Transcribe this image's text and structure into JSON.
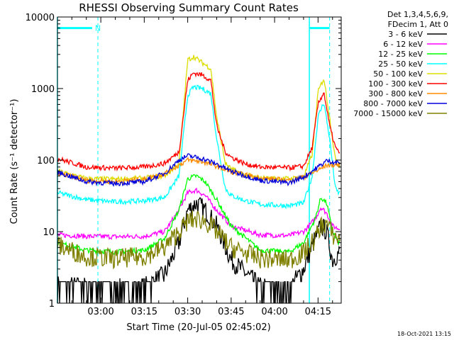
{
  "chart_data": {
    "type": "line",
    "title": "RHESSI Observing Summary Count Rates",
    "xlabel": "Start Time (20-Jul-05 02:45:02)",
    "ylabel": "Count Rate (s⁻¹ detector⁻¹)",
    "y_scale": "log",
    "ylim": [
      1,
      10000
    ],
    "xlim": [
      "02:45:02",
      "04:23:00"
    ],
    "x_ticks": [
      "03:00",
      "03:15",
      "03:30",
      "03:45",
      "04:00",
      "04:15"
    ],
    "y_ticks": [
      "1",
      "10",
      "100",
      "1000",
      "10000"
    ],
    "legend_header": [
      "Det 1,3,4,5,6,9,",
      "FDecim 1, Att 0"
    ],
    "legend_position": "right",
    "series": [
      {
        "name": "3 - 6 keV",
        "color": "#000000",
        "x": [
          "02:45",
          "02:55",
          "03:05",
          "03:15",
          "03:22",
          "03:27",
          "03:30",
          "03:33",
          "03:36",
          "03:40",
          "03:45",
          "03:55",
          "04:05",
          "04:10",
          "04:14",
          "04:16",
          "04:18",
          "04:20",
          "04:22"
        ],
        "values": [
          1.8,
          1.7,
          1.6,
          1.7,
          2.5,
          7,
          20,
          25,
          20,
          12,
          4,
          1.7,
          1.6,
          3,
          8,
          12,
          10,
          4,
          5
        ],
        "noisy": true
      },
      {
        "name": "6 - 12 keV",
        "color": "#ff00ff",
        "x": [
          "02:45",
          "02:55",
          "03:05",
          "03:15",
          "03:22",
          "03:27",
          "03:30",
          "03:33",
          "03:36",
          "03:40",
          "03:45",
          "03:55",
          "04:05",
          "04:10",
          "04:14",
          "04:16",
          "04:18",
          "04:20",
          "04:22"
        ],
        "values": [
          9,
          8.6,
          8.5,
          8.6,
          10,
          20,
          35,
          38,
          32,
          20,
          12,
          9,
          8.8,
          10,
          15,
          22,
          18,
          12,
          11
        ]
      },
      {
        "name": "12 - 25 keV",
        "color": "#00ff00",
        "x": [
          "02:45",
          "02:55",
          "03:05",
          "03:15",
          "03:22",
          "03:27",
          "03:30",
          "03:33",
          "03:36",
          "03:40",
          "03:45",
          "03:55",
          "04:05",
          "04:10",
          "04:14",
          "04:16",
          "04:18",
          "04:20",
          "04:22"
        ],
        "values": [
          7,
          5.5,
          5.2,
          5.5,
          8,
          20,
          55,
          60,
          50,
          28,
          12,
          5.5,
          5.2,
          7,
          15,
          30,
          25,
          10,
          7
        ]
      },
      {
        "name": "25 - 50 keV",
        "color": "#00ffff",
        "x": [
          "02:45",
          "02:55",
          "03:05",
          "03:15",
          "03:22",
          "03:27",
          "03:30",
          "03:32",
          "03:35",
          "03:38",
          "03:40",
          "03:43",
          "03:45",
          "03:50",
          "03:55",
          "04:05",
          "04:10",
          "04:13",
          "04:15",
          "04:17",
          "04:19",
          "04:21",
          "04:22"
        ],
        "values": [
          35,
          28,
          26,
          27,
          30,
          60,
          800,
          1050,
          1000,
          850,
          200,
          40,
          32,
          27,
          24,
          23,
          25,
          60,
          400,
          650,
          200,
          40,
          35
        ]
      },
      {
        "name": "50 - 100 keV",
        "color": "#dddd00",
        "x": [
          "02:45",
          "02:55",
          "03:05",
          "03:15",
          "03:22",
          "03:27",
          "03:30",
          "03:32",
          "03:35",
          "03:38",
          "03:40",
          "03:43",
          "03:45",
          "03:50",
          "03:55",
          "04:05",
          "04:10",
          "04:13",
          "04:15",
          "04:17",
          "04:19",
          "04:21",
          "04:22"
        ],
        "values": [
          70,
          55,
          54,
          56,
          60,
          90,
          2500,
          2800,
          2300,
          1900,
          400,
          90,
          75,
          62,
          56,
          55,
          58,
          120,
          900,
          1400,
          400,
          100,
          85
        ]
      },
      {
        "name": "100 - 300 keV",
        "color": "#ff0000",
        "x": [
          "02:45",
          "02:55",
          "03:05",
          "03:15",
          "03:22",
          "03:27",
          "03:30",
          "03:32",
          "03:35",
          "03:38",
          "03:40",
          "03:43",
          "03:45",
          "03:50",
          "03:55",
          "04:05",
          "04:10",
          "04:13",
          "04:15",
          "04:17",
          "04:19",
          "04:21",
          "04:22"
        ],
        "values": [
          105,
          80,
          77,
          80,
          90,
          130,
          1300,
          1650,
          1550,
          1300,
          300,
          130,
          110,
          88,
          80,
          78,
          82,
          150,
          600,
          900,
          300,
          150,
          130
        ]
      },
      {
        "name": "300 - 800 keV",
        "color": "#ff8c00",
        "x": [
          "02:45",
          "02:55",
          "03:05",
          "03:15",
          "03:22",
          "03:27",
          "03:30",
          "03:35",
          "03:40",
          "03:45",
          "03:55",
          "04:05",
          "04:10",
          "04:15",
          "04:18",
          "04:22"
        ],
        "values": [
          66,
          52,
          50,
          54,
          65,
          85,
          100,
          95,
          82,
          68,
          56,
          52,
          58,
          72,
          85,
          86
        ]
      },
      {
        "name": "800 - 7000 keV",
        "color": "#0000dd",
        "x": [
          "02:45",
          "02:55",
          "03:05",
          "03:15",
          "03:22",
          "03:27",
          "03:30",
          "03:35",
          "03:40",
          "03:45",
          "03:55",
          "04:05",
          "04:10",
          "04:15",
          "04:18",
          "04:22"
        ],
        "values": [
          68,
          50,
          47,
          50,
          65,
          100,
          115,
          105,
          88,
          70,
          52,
          48,
          58,
          80,
          98,
          92
        ]
      },
      {
        "name": "7000 - 15000 keV",
        "color": "#808000",
        "x": [
          "02:45",
          "02:55",
          "03:05",
          "03:15",
          "03:22",
          "03:27",
          "03:30",
          "03:33",
          "03:36",
          "03:40",
          "03:45",
          "03:55",
          "04:05",
          "04:10",
          "04:14",
          "04:16",
          "04:18",
          "04:20",
          "04:22"
        ],
        "values": [
          6.5,
          4.5,
          4.2,
          4.5,
          6,
          10,
          14,
          15,
          14,
          10,
          6,
          4.2,
          4,
          5,
          8,
          12,
          13,
          9,
          8
        ],
        "noisy": true
      }
    ],
    "markers": {
      "color": "#00ffff",
      "solid_lines": [
        "02:45",
        "04:12"
      ],
      "dashed_lines": [
        "02:59",
        "04:19"
      ],
      "bars": [
        {
          "x1": "02:45",
          "x2": "02:57",
          "y": 7000,
          "label": "N"
        },
        {
          "x1": "04:12",
          "x2": "04:19",
          "y": 7000
        }
      ]
    }
  },
  "footer": {
    "timestamp": "18-Oct-2021 13:15"
  }
}
